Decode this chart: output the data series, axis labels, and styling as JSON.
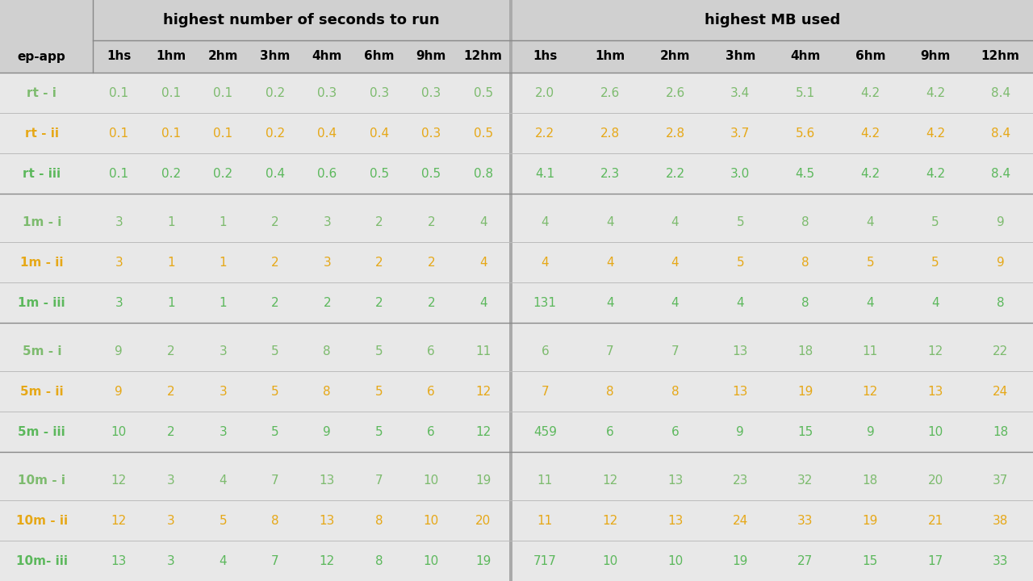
{
  "rows": [
    "rt - i",
    "rt - ii",
    "rt - iii",
    "1m - i",
    "1m - ii",
    "1m - iii",
    "5m - i",
    "5m - ii",
    "5m - iii",
    "10m - i",
    "10m - ii",
    "10m- iii"
  ],
  "seconds_cols": [
    "1hs",
    "1hm",
    "2hm",
    "3hm",
    "4hm",
    "6hm",
    "9hm",
    "12hm"
  ],
  "mb_cols": [
    "1hs",
    "1hm",
    "2hm",
    "3hm",
    "4hm",
    "6hm",
    "9hm",
    "12hm"
  ],
  "seconds_data": [
    [
      "0.1",
      "0.1",
      "0.1",
      "0.2",
      "0.3",
      "0.3",
      "0.3",
      "0.5"
    ],
    [
      "0.1",
      "0.1",
      "0.1",
      "0.2",
      "0.4",
      "0.4",
      "0.3",
      "0.5"
    ],
    [
      "0.1",
      "0.2",
      "0.2",
      "0.4",
      "0.6",
      "0.5",
      "0.5",
      "0.8"
    ],
    [
      "3",
      "1",
      "1",
      "2",
      "3",
      "2",
      "2",
      "4"
    ],
    [
      "3",
      "1",
      "1",
      "2",
      "3",
      "2",
      "2",
      "4"
    ],
    [
      "3",
      "1",
      "1",
      "2",
      "2",
      "2",
      "2",
      "4"
    ],
    [
      "9",
      "2",
      "3",
      "5",
      "8",
      "5",
      "6",
      "11"
    ],
    [
      "9",
      "2",
      "3",
      "5",
      "8",
      "5",
      "6",
      "12"
    ],
    [
      "10",
      "2",
      "3",
      "5",
      "9",
      "5",
      "6",
      "12"
    ],
    [
      "12",
      "3",
      "4",
      "7",
      "13",
      "7",
      "10",
      "19"
    ],
    [
      "12",
      "3",
      "5",
      "8",
      "13",
      "8",
      "10",
      "20"
    ],
    [
      "13",
      "3",
      "4",
      "7",
      "12",
      "8",
      "10",
      "19"
    ]
  ],
  "mb_data": [
    [
      "2.0",
      "2.6",
      "2.6",
      "3.4",
      "5.1",
      "4.2",
      "4.2",
      "8.4"
    ],
    [
      "2.2",
      "2.8",
      "2.8",
      "3.7",
      "5.6",
      "4.2",
      "4.2",
      "8.4"
    ],
    [
      "4.1",
      "2.3",
      "2.2",
      "3.0",
      "4.5",
      "4.2",
      "4.2",
      "8.4"
    ],
    [
      "4",
      "4",
      "4",
      "5",
      "8",
      "4",
      "5",
      "9"
    ],
    [
      "4",
      "4",
      "4",
      "5",
      "8",
      "5",
      "5",
      "9"
    ],
    [
      "131",
      "4",
      "4",
      "4",
      "8",
      "4",
      "4",
      "8"
    ],
    [
      "6",
      "7",
      "7",
      "13",
      "18",
      "11",
      "12",
      "22"
    ],
    [
      "7",
      "8",
      "8",
      "13",
      "19",
      "12",
      "13",
      "24"
    ],
    [
      "459",
      "6",
      "6",
      "9",
      "15",
      "9",
      "10",
      "18"
    ],
    [
      "11",
      "12",
      "13",
      "23",
      "32",
      "18",
      "20",
      "37"
    ],
    [
      "11",
      "12",
      "13",
      "24",
      "33",
      "19",
      "21",
      "38"
    ],
    [
      "717",
      "10",
      "10",
      "19",
      "27",
      "15",
      "17",
      "33"
    ]
  ],
  "header_bg": "#d0d0d0",
  "data_bg": "#e8e8e8",
  "title_seconds": "highest number of seconds to run",
  "title_mb": "highest MB used",
  "col_header_row_label": "ep-app",
  "color_i": "#7dbb6e",
  "color_ii": "#e6a817",
  "color_iii": "#5cb85c",
  "sep_color": "#aaaaaa",
  "line_color": "#bbbbbb",
  "strong_line_color": "#888888",
  "fontsize_title": 13,
  "fontsize_header": 11,
  "fontsize_data": 11,
  "fontsize_rowlabel": 11
}
